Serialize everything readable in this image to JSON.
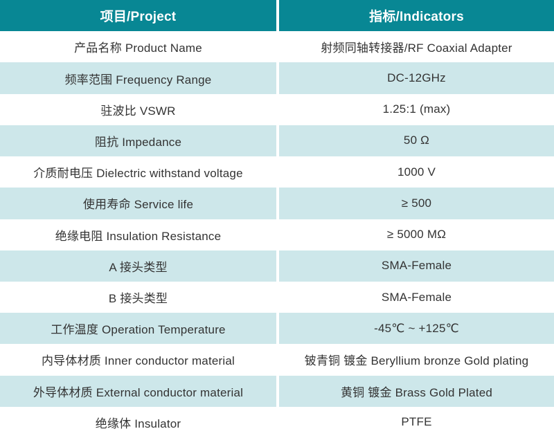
{
  "table": {
    "header": {
      "project": "项目/Project",
      "indicators": "指标/Indicators"
    },
    "rows": [
      {
        "project": "产品名称 Product Name",
        "indicator": "射频同轴转接器/RF Coaxial Adapter"
      },
      {
        "project": "频率范围 Frequency Range",
        "indicator": "DC-12GHz"
      },
      {
        "project": "驻波比 VSWR",
        "indicator": "1.25:1 (max)"
      },
      {
        "project": "阻抗 Impedance",
        "indicator": "50 Ω"
      },
      {
        "project": "介质耐电压 Dielectric withstand voltage",
        "indicator": "1000 V"
      },
      {
        "project": "使用寿命 Service life",
        "indicator": "≥ 500"
      },
      {
        "project": "绝缘电阻 Insulation Resistance",
        "indicator": "≥ 5000 MΩ"
      },
      {
        "project": "A 接头类型",
        "indicator": "SMA-Female"
      },
      {
        "project": "B 接头类型",
        "indicator": "SMA-Female"
      },
      {
        "project": "工作温度 Operation Temperature",
        "indicator": "-45℃ ~ +125℃"
      },
      {
        "project": "内导体材质 Inner conductor material",
        "indicator": "铍青铜 镀金 Beryllium bronze Gold plating"
      },
      {
        "project": "外导体材质 External conductor material",
        "indicator": "黄铜 镀金 Brass Gold Plated"
      },
      {
        "project": "绝缘体 Insulator",
        "indicator": "PTFE"
      }
    ],
    "colors": {
      "header_bg": "#088794",
      "header_text": "#ffffff",
      "alt_row_bg": "#cde7ea",
      "body_text": "#333333"
    }
  }
}
